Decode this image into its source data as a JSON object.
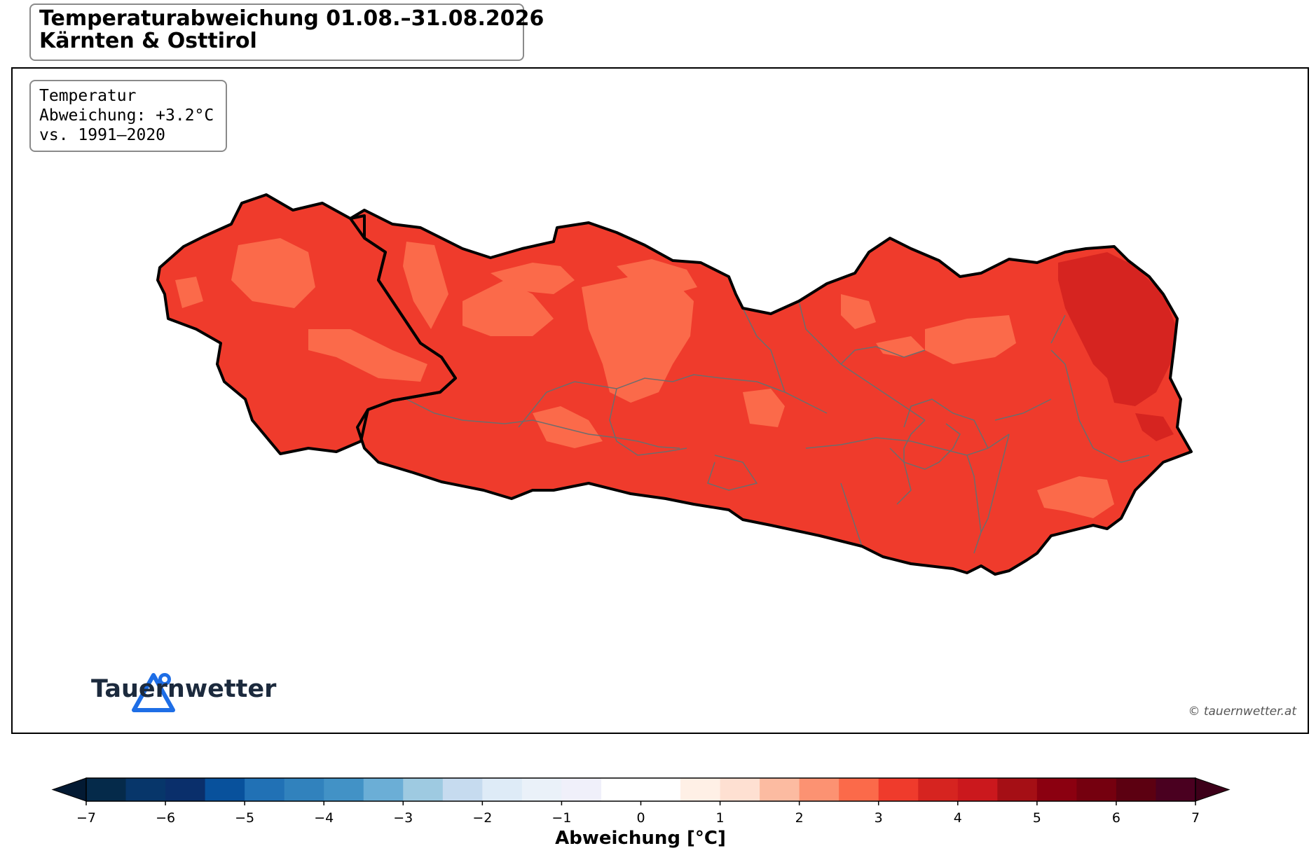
{
  "title": {
    "line1": "Temperaturabweichung 01.08.–31.08.2026",
    "line2": "Kärnten & Osttirol"
  },
  "info_box": {
    "line1": "Temperatur",
    "line2": "Abweichung: +3.2°C",
    "line3": "vs. 1991–2020"
  },
  "branding": {
    "logo_name": "triangle-pin-logo",
    "logo_text": "Tauernwetter",
    "copyright": "© tauernwetter.at",
    "logo_color": "#1e6ee6"
  },
  "map": {
    "regions": [
      {
        "name": "Osttirol",
        "anomaly_level": "3",
        "fill": "#ef3b2c"
      },
      {
        "name": "Kärnten",
        "anomaly_level": "3",
        "fill": "#ef3b2c"
      }
    ],
    "warm_patch_color": "#fb6a4a",
    "hot_patch_color": "#d62420",
    "border_color": "#000000",
    "district_border_color": "#6d6d6d"
  },
  "colorbar": {
    "label": "Abweichung [°C]",
    "min": -7,
    "max": 7,
    "step": 0.5,
    "ticks": [
      "−7",
      "−6",
      "−5",
      "−4",
      "−3",
      "−2",
      "−1",
      "0",
      "1",
      "2",
      "3",
      "4",
      "5",
      "6",
      "7"
    ],
    "colors": [
      "#052a4a",
      "#07366a",
      "#0a2f6b",
      "#08519c",
      "#2171b5",
      "#3182bd",
      "#4292c6",
      "#6baed6",
      "#9ecae1",
      "#c6dbef",
      "#deebf7",
      "#eaf1f9",
      "#f0f0fa",
      "#ffffff",
      "#fff0e6",
      "#fee0d2",
      "#fcbba1",
      "#fc9272",
      "#fb6a4a",
      "#ef3b2c",
      "#d62420",
      "#cb181d",
      "#a50f15",
      "#8b0010",
      "#75000f",
      "#5c0011",
      "#4a0020"
    ],
    "under_color": "#031a33",
    "over_color": "#3d0019"
  }
}
